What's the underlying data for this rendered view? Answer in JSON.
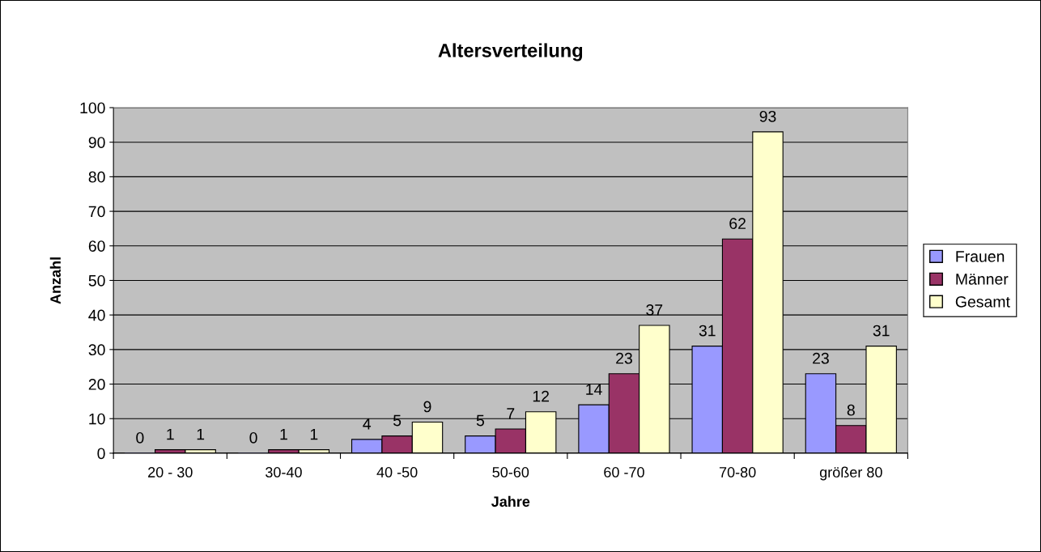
{
  "chart_data": {
    "type": "bar",
    "title": "Altersverteilung",
    "xlabel": "Jahre",
    "ylabel": "Anzahl",
    "categories": [
      "20 - 30",
      "30-40",
      "40 -50",
      "50-60",
      "60 -70",
      "70-80",
      "größer 80"
    ],
    "series": [
      {
        "name": "Frauen",
        "color": "#9999ff",
        "values": [
          0,
          0,
          4,
          5,
          14,
          31,
          23
        ]
      },
      {
        "name": "Männer",
        "color": "#993366",
        "values": [
          1,
          1,
          5,
          7,
          23,
          62,
          8
        ]
      },
      {
        "name": "Gesamt",
        "color": "#ffffcc",
        "values": [
          1,
          1,
          9,
          12,
          37,
          93,
          31
        ]
      }
    ],
    "ylim": [
      0,
      100
    ],
    "yticks": [
      0,
      10,
      20,
      30,
      40,
      50,
      60,
      70,
      80,
      90,
      100
    ],
    "grid": "y",
    "legend": "right",
    "data_labels": true
  }
}
